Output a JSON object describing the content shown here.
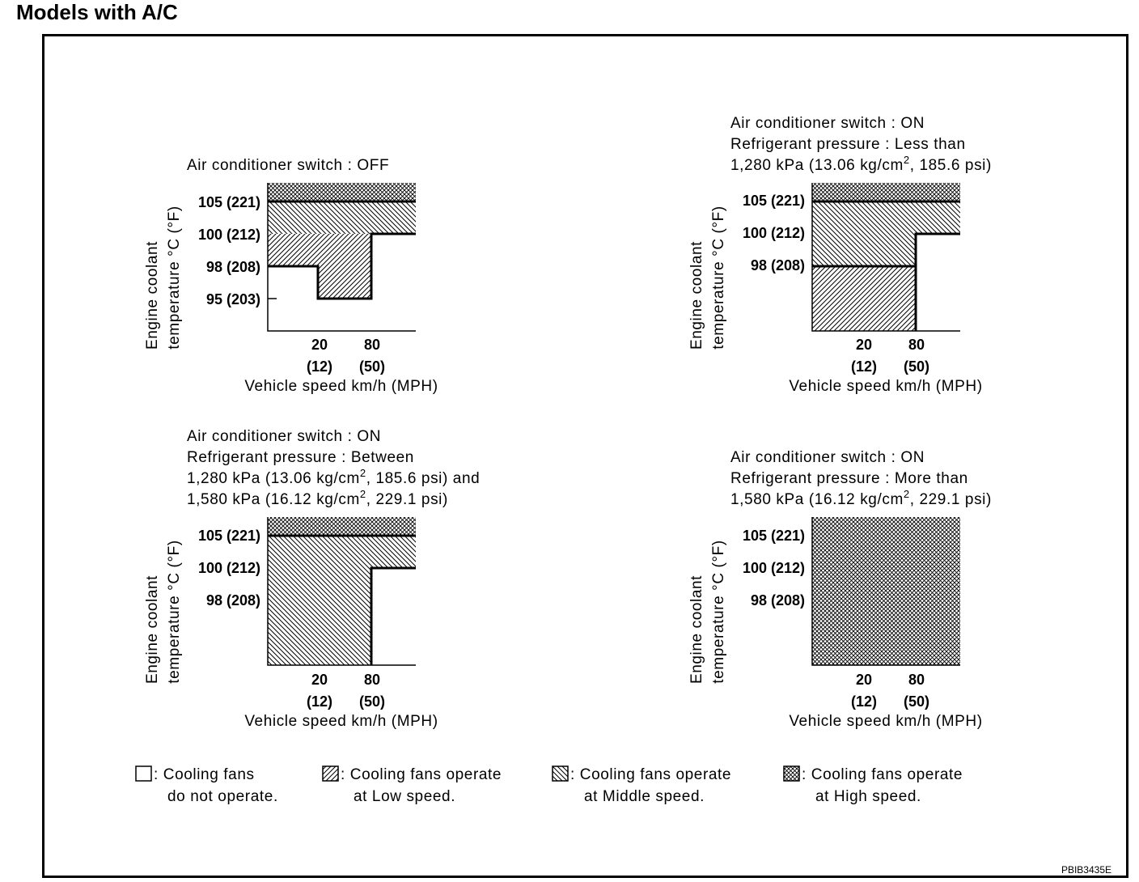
{
  "title": "Models with A/C",
  "doc_code": "PBIB3435E",
  "panels": [
    {
      "caption": [
        "Air conditioner switch : OFF"
      ],
      "y_label_line1": "Engine coolant",
      "y_label_line2": "temperature °C (°F)",
      "y_ticks": [
        "105 (221)",
        "100 (212)",
        "98 (208)",
        "95 (203)"
      ],
      "x_ticks": [
        "20",
        "80"
      ],
      "x_ticks_mph": [
        "(12)",
        "(50)"
      ],
      "x_label": "Vehicle speed km/h (MPH)"
    },
    {
      "caption": [
        "Air conditioner switch : ON",
        "Refrigerant pressure : Less than",
        "1,280 kPa (13.06 kg/cm",
        "2",
        ", 185.6 psi)"
      ],
      "y_label_line1": "Engine coolant",
      "y_label_line2": "temperature °C (°F)",
      "y_ticks": [
        "105 (221)",
        "100 (212)",
        "98 (208)"
      ],
      "x_ticks": [
        "20",
        "80"
      ],
      "x_ticks_mph": [
        "(12)",
        "(50)"
      ],
      "x_label": "Vehicle speed km/h (MPH)"
    },
    {
      "caption": [
        "Air conditioner switch : ON",
        "Refrigerant pressure : Between",
        "1,280 kPa (13.06 kg/cm",
        "2",
        ", 185.6 psi) and",
        "1,580 kPa (16.12 kg/cm",
        "2",
        ", 229.1 psi)"
      ],
      "y_label_line1": "Engine coolant",
      "y_label_line2": "temperature °C (°F)",
      "y_ticks": [
        "105 (221)",
        "100 (212)",
        "98 (208)"
      ],
      "x_ticks": [
        "20",
        "80"
      ],
      "x_ticks_mph": [
        "(12)",
        "(50)"
      ],
      "x_label": "Vehicle speed km/h (MPH)"
    },
    {
      "caption": [
        "Air conditioner switch : ON",
        "Refrigerant pressure : More than",
        "1,580 kPa (16.12 kg/cm",
        "2",
        ", 229.1 psi)"
      ],
      "y_label_line1": "Engine coolant",
      "y_label_line2": "temperature °C (°F)",
      "y_ticks": [
        "105 (221)",
        "100 (212)",
        "98 (208)"
      ],
      "x_ticks": [
        "20",
        "80"
      ],
      "x_ticks_mph": [
        "(12)",
        "(50)"
      ],
      "x_label": "Vehicle speed km/h (MPH)"
    }
  ],
  "legend": [
    {
      "pattern": "none",
      "line1": ": Cooling fans",
      "line2": "do not operate."
    },
    {
      "pattern": "low",
      "line1": ": Cooling fans operate",
      "line2": "at Low speed."
    },
    {
      "pattern": "middle",
      "line1": ": Cooling fans operate",
      "line2": "at Middle speed."
    },
    {
      "pattern": "high",
      "line1": ": Cooling fans operate",
      "line2": "at High speed."
    }
  ]
}
